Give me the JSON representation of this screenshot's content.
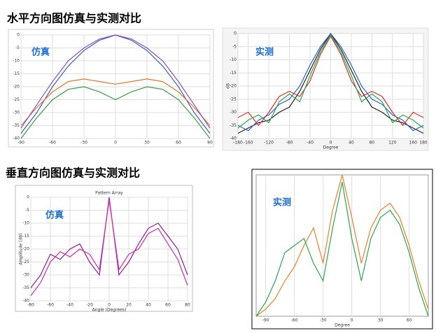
{
  "headings": [
    "水平方向图仿真与实测对比",
    "垂直方向图仿真与实测对比"
  ],
  "chart_data": [
    {
      "type": "line",
      "annotation": "仿真",
      "grid": true,
      "xlim": [
        -90,
        90
      ],
      "ylim": [
        -40,
        0
      ],
      "xticks": [
        -90,
        -60,
        -30,
        0,
        30,
        60,
        90
      ],
      "yticks": [
        0,
        -5,
        -10,
        -15,
        -20,
        -25,
        -30,
        -35,
        -40
      ],
      "x": [
        -90,
        -75,
        -60,
        -45,
        -30,
        -15,
        0,
        15,
        30,
        45,
        60,
        75,
        90
      ],
      "series": [
        {
          "color": "#3b5fc4",
          "values": [
            -38,
            -30,
            -20,
            -12,
            -6,
            -2,
            0,
            -2,
            -6,
            -12,
            -20,
            -30,
            -38
          ]
        },
        {
          "color": "#e0782b",
          "values": [
            -35,
            -28,
            -22,
            -18,
            -17,
            -18,
            -19,
            -18,
            -17,
            -18,
            -22,
            -28,
            -35
          ]
        },
        {
          "color": "#3a9a4a",
          "values": [
            -40,
            -32,
            -25,
            -21,
            -20,
            -22,
            -25,
            -22,
            -20,
            -21,
            -25,
            -32,
            -40
          ]
        },
        {
          "color": "#8a4fb8",
          "values": [
            -36,
            -27,
            -18,
            -10,
            -5,
            -1.5,
            0,
            -1.5,
            -5,
            -10,
            -18,
            -27,
            -36
          ]
        }
      ]
    },
    {
      "type": "line",
      "annotation": "实测",
      "grid": true,
      "xlabel": "Degree",
      "ylabel": "dB",
      "xlim": [
        -180,
        180
      ],
      "ylim": [
        -40,
        0
      ],
      "xticks": [
        -180,
        -160,
        -120,
        -80,
        -40,
        0,
        40,
        80,
        120,
        160,
        180
      ],
      "yticks": [
        0,
        -5,
        -10,
        -15,
        -20,
        -25,
        -30,
        -35,
        -40
      ],
      "x": [
        -180,
        -160,
        -140,
        -120,
        -100,
        -80,
        -60,
        -40,
        -20,
        0,
        20,
        40,
        60,
        80,
        100,
        120,
        140,
        160,
        180
      ],
      "series": [
        {
          "color": "#222222",
          "values": [
            -38,
            -36,
            -34,
            -33,
            -30,
            -28,
            -22,
            -14,
            -6,
            0,
            -6,
            -14,
            -22,
            -28,
            -30,
            -33,
            -34,
            -36,
            -38
          ]
        },
        {
          "color": "#2a5fd8",
          "values": [
            -35,
            -37,
            -33,
            -31,
            -27,
            -25,
            -20,
            -12,
            -5,
            0,
            -5,
            -12,
            -20,
            -25,
            -27,
            -31,
            -33,
            -37,
            -35
          ]
        },
        {
          "color": "#d8302a",
          "values": [
            -32,
            -30,
            -35,
            -30,
            -24,
            -22,
            -24,
            -18,
            -8,
            -1,
            -8,
            -18,
            -24,
            -22,
            -24,
            -30,
            -35,
            -30,
            -32
          ]
        },
        {
          "color": "#2aa84a",
          "values": [
            -36,
            -33,
            -31,
            -34,
            -26,
            -23,
            -26,
            -16,
            -7,
            -0.5,
            -7,
            -16,
            -26,
            -23,
            -26,
            -34,
            -31,
            -33,
            -36
          ]
        }
      ]
    },
    {
      "type": "line",
      "annotation": "仿真",
      "grid": true,
      "title": "Pattern Array",
      "xlabel": "Angle (Degrees)",
      "ylabel": "Amplitude (dB)",
      "xlim": [
        -80,
        80
      ],
      "ylim": [
        -40,
        0
      ],
      "xticks": [
        -80,
        -60,
        -40,
        -20,
        0,
        20,
        40,
        60,
        80
      ],
      "yticks": [
        0,
        -5,
        -10,
        -15,
        -20,
        -25,
        -30,
        -35,
        -40
      ],
      "x": [
        -80,
        -70,
        -60,
        -50,
        -40,
        -30,
        -20,
        -10,
        0,
        10,
        20,
        30,
        40,
        50,
        60,
        70,
        80
      ],
      "series": [
        {
          "color": "#8a1f9a",
          "values": [
            -35,
            -30,
            -22,
            -24,
            -20,
            -18,
            -25,
            -30,
            0,
            -30,
            -25,
            -18,
            -12,
            -10,
            -15,
            -20,
            -30
          ]
        },
        {
          "color": "#d02aa0",
          "values": [
            -38,
            -33,
            -25,
            -21,
            -23,
            -20,
            -22,
            -28,
            -1,
            -28,
            -22,
            -20,
            -14,
            -12,
            -18,
            -24,
            -34
          ]
        }
      ]
    },
    {
      "type": "line",
      "annotation": "实测",
      "grid": true,
      "xlabel": "Degree",
      "xlim": [
        -100,
        80
      ],
      "ylim": [
        -40,
        0
      ],
      "xticks": [
        -90,
        -60,
        -30,
        0,
        30,
        60
      ],
      "x": [
        -100,
        -90,
        -80,
        -70,
        -60,
        -50,
        -40,
        -30,
        -20,
        -10,
        0,
        10,
        20,
        30,
        40,
        50,
        60,
        70,
        80
      ],
      "series": [
        {
          "color": "#e8802a",
          "values": [
            -40,
            -38,
            -35,
            -30,
            -26,
            -20,
            -15,
            -25,
            -10,
            0,
            -12,
            -25,
            -15,
            -10,
            -8,
            -12,
            -20,
            -30,
            -38
          ]
        },
        {
          "color": "#2aa84a",
          "values": [
            -40,
            -36,
            -30,
            -22,
            -20,
            -18,
            -25,
            -30,
            -15,
            -2,
            -18,
            -30,
            -18,
            -12,
            -10,
            -14,
            -22,
            -32,
            -40
          ]
        }
      ]
    }
  ]
}
